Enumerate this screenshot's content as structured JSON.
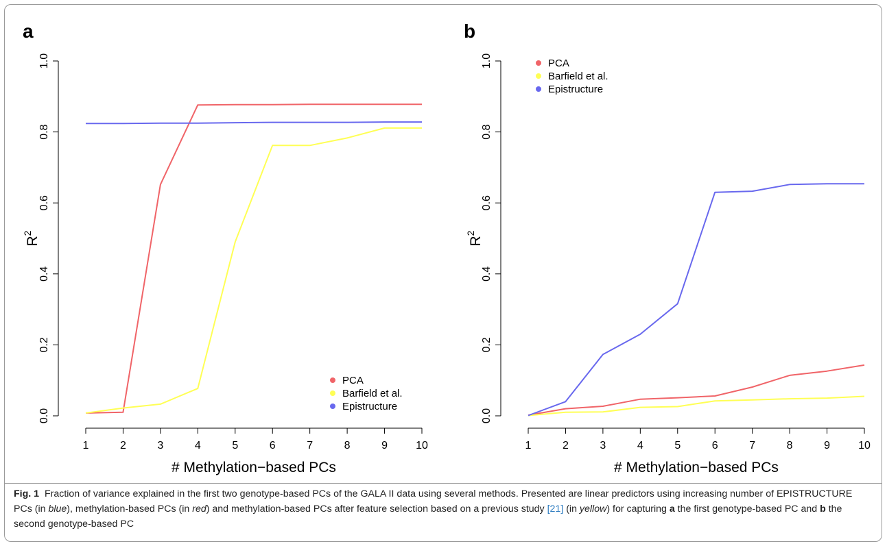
{
  "chart_data": [
    {
      "panel": "a",
      "type": "line",
      "xlabel": "# Methylation−based PCs",
      "ylabel": "R",
      "ylabel_sup": "2",
      "x": [
        1,
        2,
        3,
        4,
        5,
        6,
        7,
        8,
        9,
        10
      ],
      "xlim": [
        1,
        10
      ],
      "ylim": [
        0,
        1
      ],
      "xticks": [
        "1",
        "2",
        "3",
        "4",
        "5",
        "6",
        "7",
        "8",
        "9",
        "10"
      ],
      "yticks": [
        "0.0",
        "0.2",
        "0.4",
        "0.6",
        "0.8",
        "1.0"
      ],
      "legend_position": "bottom-right",
      "grid": false,
      "series": [
        {
          "name": "PCA",
          "color": "#f06468",
          "values": [
            0.008,
            0.01,
            0.652,
            0.876,
            0.877,
            0.877,
            0.878,
            0.878,
            0.878,
            0.878
          ]
        },
        {
          "name": "Barfield et al.",
          "color": "#ffff55",
          "values": [
            0.008,
            0.022,
            0.033,
            0.077,
            0.49,
            0.762,
            0.762,
            0.783,
            0.811,
            0.811
          ]
        },
        {
          "name": "Epistructure",
          "color": "#6868ee",
          "values": [
            0.824,
            0.824,
            0.825,
            0.825,
            0.826,
            0.827,
            0.827,
            0.827,
            0.828,
            0.828
          ]
        }
      ]
    },
    {
      "panel": "b",
      "type": "line",
      "xlabel": "# Methylation−based PCs",
      "ylabel": "R",
      "ylabel_sup": "2",
      "x": [
        1,
        2,
        3,
        4,
        5,
        6,
        7,
        8,
        9,
        10
      ],
      "xlim": [
        1,
        10
      ],
      "ylim": [
        0,
        1
      ],
      "xticks": [
        "1",
        "2",
        "3",
        "4",
        "5",
        "6",
        "7",
        "8",
        "9",
        "10"
      ],
      "yticks": [
        "0.0",
        "0.2",
        "0.4",
        "0.6",
        "0.8",
        "1.0"
      ],
      "legend_position": "top-left",
      "grid": false,
      "series": [
        {
          "name": "PCA",
          "color": "#f06468",
          "values": [
            0.002,
            0.02,
            0.027,
            0.047,
            0.051,
            0.056,
            0.081,
            0.114,
            0.126,
            0.143
          ]
        },
        {
          "name": "Barfield et al.",
          "color": "#ffff55",
          "values": [
            0.001,
            0.01,
            0.011,
            0.024,
            0.026,
            0.042,
            0.045,
            0.048,
            0.05,
            0.055
          ]
        },
        {
          "name": "Epistructure",
          "color": "#6868ee",
          "values": [
            0.001,
            0.04,
            0.173,
            0.23,
            0.316,
            0.63,
            0.633,
            0.652,
            0.654,
            0.654
          ]
        }
      ]
    }
  ],
  "caption": {
    "fig_label": "Fig. 1",
    "part1": "Fraction of variance explained in the first two genotype-based PCs of the GALA II data using several methods. Presented are linear predictors using increasing number of EPISTRUCTURE PCs (in ",
    "blue": "blue",
    "part2": "), methylation-based PCs (in ",
    "red": "red",
    "part3": ") and methylation-based PCs after feature selection based on a previous study ",
    "ref": "[21]",
    "part4": " (in ",
    "yellow": "yellow",
    "part5": ") for capturing ",
    "a": "a",
    "part6": " the first genotype-based PC and ",
    "b": "b",
    "part7": " the second genotype-based PC"
  }
}
